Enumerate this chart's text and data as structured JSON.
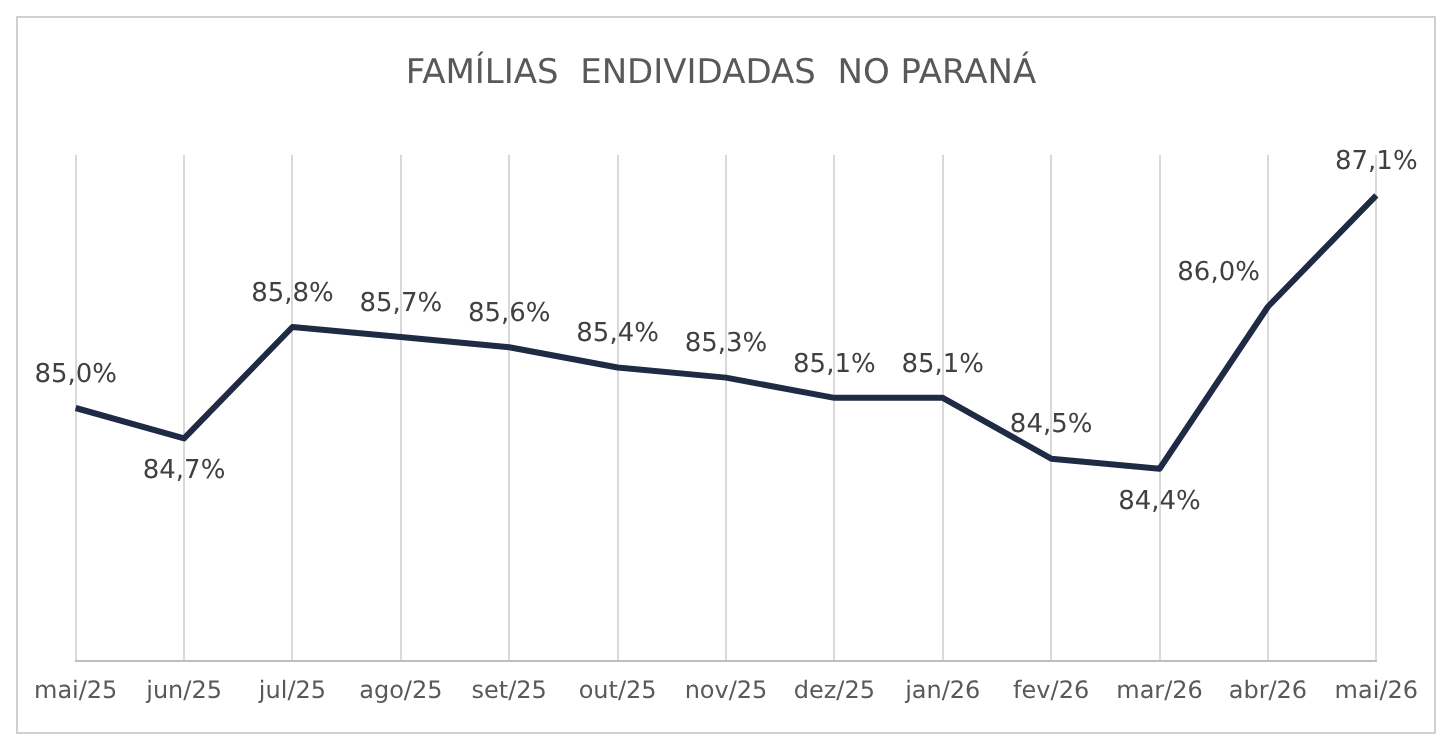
{
  "chart_data": {
    "type": "line",
    "title": "FAMÍLIAS  ENDIVIDADAS  NO PARANÁ",
    "categories": [
      "mai/25",
      "jun/25",
      "jul/25",
      "ago/25",
      "set/25",
      "out/25",
      "nov/25",
      "dez/25",
      "jan/26",
      "fev/26",
      "mar/26",
      "abr/26",
      "mai/26"
    ],
    "series": [
      {
        "color": "#1f2a44",
        "values": [
          85.0,
          84.7,
          85.8,
          85.7,
          85.6,
          85.4,
          85.3,
          85.1,
          85.1,
          84.5,
          84.4,
          86.0,
          87.1
        ],
        "value_labels": [
          "85,0%",
          "84,7%",
          "85,8%",
          "85,7%",
          "85,6%",
          "85,4%",
          "85,3%",
          "85,1%",
          "85,1%",
          "84,5%",
          "84,4%",
          "86,0%",
          "87,1%"
        ]
      }
    ],
    "grid": "x",
    "legend": false,
    "marker": "none",
    "line_style": "solid"
  }
}
